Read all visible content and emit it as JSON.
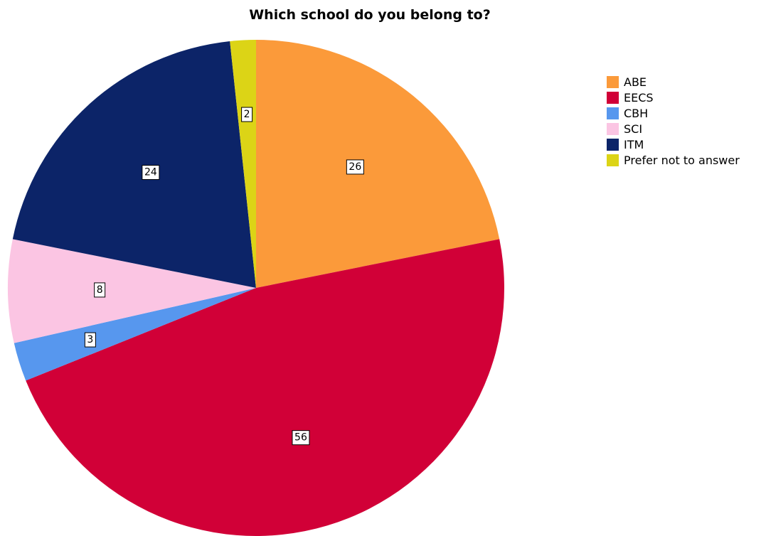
{
  "chart_data": {
    "type": "pie",
    "title": "Which school do you belong to?",
    "categories": [
      "ABE",
      "EECS",
      "CBH",
      "SCI",
      "ITM",
      "Prefer not to answer"
    ],
    "values": [
      26,
      56,
      3,
      8,
      24,
      2
    ],
    "colors": [
      "#fb9a3a",
      "#d10037",
      "#5797ee",
      "#fbc5e3",
      "#0c2468",
      "#dcd416"
    ],
    "legend_position": "right",
    "data_labels": true
  }
}
